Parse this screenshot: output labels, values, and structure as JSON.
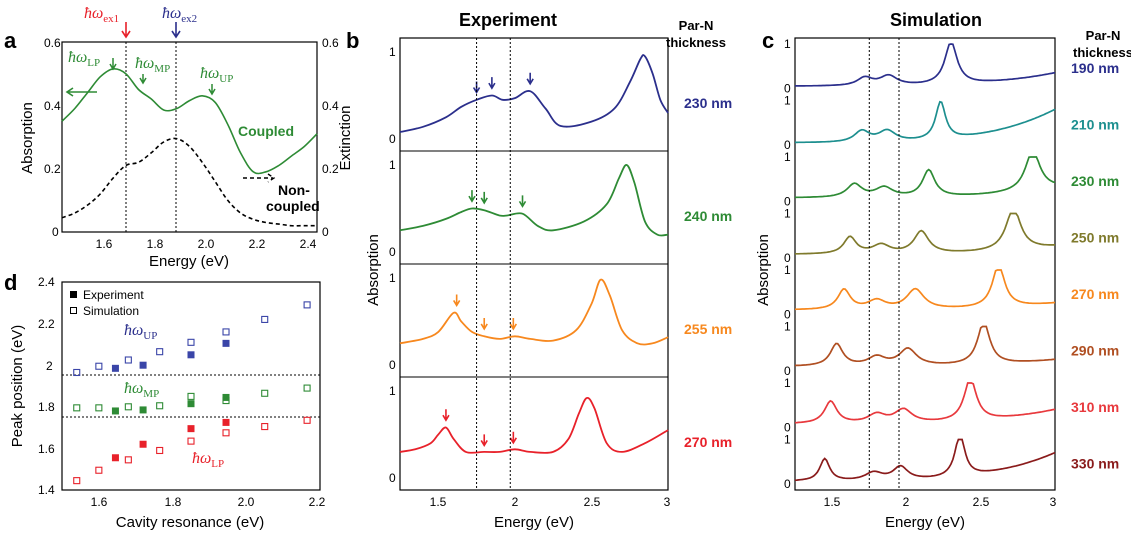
{
  "panel_labels": {
    "a": "a",
    "b": "b",
    "c": "c",
    "d": "d"
  },
  "titles": {
    "b": "Experiment",
    "c": "Simulation"
  },
  "header": {
    "line1": "Par-N",
    "line2": "thickness"
  },
  "panel_a": {
    "ylabel_left": "Absorption",
    "ylabel_right": "Extinction",
    "xlabel": "Energy (eV)",
    "xticks": [
      "1.6",
      "1.8",
      "2.0",
      "2.2",
      "2.4"
    ],
    "yticks": [
      "0",
      "0.2",
      "0.4",
      "0.6"
    ],
    "ex1": {
      "main": "ħω",
      "sub": "ex1"
    },
    "ex2": {
      "main": "ħω",
      "sub": "ex2"
    },
    "lp": {
      "main": "ħω",
      "sub": "LP"
    },
    "mp": {
      "main": "ħω",
      "sub": "MP"
    },
    "up": {
      "main": "ħω",
      "sub": "UP"
    },
    "coupled": "Coupled",
    "noncoupled_1": "Non-",
    "noncoupled_2": "coupled"
  },
  "panel_b": {
    "ylabel": "Absorption",
    "xlabel": "Energy (eV)",
    "xticks": [
      "1.5",
      "2",
      "2.5",
      "3"
    ]
  },
  "panel_c": {
    "ylabel": "Absorption",
    "xlabel": "Energy (eV)",
    "xticks": [
      "1.5",
      "2",
      "2.5",
      "3"
    ]
  },
  "panel_d": {
    "ylabel": "Peak position (eV)",
    "xlabel": "Cavity resonance (eV)",
    "xticks": [
      "1.6",
      "1.8",
      "2.0",
      "2.2"
    ],
    "yticks": [
      "1.4",
      "1.6",
      "1.8",
      "2",
      "2.2",
      "2.4"
    ],
    "legend": [
      "Experiment",
      "Simulation"
    ],
    "up": {
      "main": "ħω",
      "sub": "UP"
    },
    "mp": {
      "main": "ħω",
      "sub": "MP"
    },
    "lp": {
      "main": "ħω",
      "sub": "LP"
    }
  },
  "colors": {
    "green": "#2e8b35",
    "navy": "#2b2f8c",
    "red": "#e8212a",
    "orange": "#f7881e",
    "teal": "#1d8f8f",
    "olive": "#7f7a2c",
    "brown": "#b04f22",
    "crimson": "#e8393d",
    "maroon": "#8a1b1b",
    "blue_sq": "#3a45a8",
    "green_sq": "#2e8b35",
    "red_sq": "#e8212a"
  },
  "chart_data": [
    {
      "type": "line",
      "panel": "a",
      "xlabel": "Energy (eV)",
      "ylabel": "Absorption",
      "xlim": [
        1.5,
        2.5
      ],
      "ylim": [
        0,
        0.6
      ],
      "vlines": [
        1.75,
        1.95
      ],
      "series": [
        {
          "name": "Coupled",
          "style": "solid",
          "color": "#2e8b35",
          "x": [
            1.5,
            1.55,
            1.6,
            1.65,
            1.7,
            1.75,
            1.8,
            1.85,
            1.9,
            1.95,
            2.0,
            2.05,
            2.1,
            2.15,
            2.2,
            2.25,
            2.3,
            2.35,
            2.4,
            2.45,
            2.5
          ],
          "y": [
            0.35,
            0.39,
            0.44,
            0.49,
            0.515,
            0.5,
            0.45,
            0.42,
            0.385,
            0.39,
            0.415,
            0.43,
            0.41,
            0.34,
            0.25,
            0.19,
            0.19,
            0.21,
            0.24,
            0.27,
            0.31
          ]
        },
        {
          "name": "Non-coupled",
          "style": "dashed",
          "color": "#000000",
          "x": [
            1.5,
            1.55,
            1.6,
            1.65,
            1.7,
            1.75,
            1.8,
            1.85,
            1.9,
            1.95,
            2.0,
            2.05,
            2.1,
            2.15,
            2.2,
            2.25,
            2.3,
            2.35,
            2.4,
            2.45,
            2.5
          ],
          "y": [
            0.045,
            0.06,
            0.085,
            0.12,
            0.17,
            0.21,
            0.22,
            0.25,
            0.285,
            0.295,
            0.27,
            0.22,
            0.16,
            0.1,
            0.06,
            0.04,
            0.03,
            0.025,
            0.02,
            0.02,
            0.02
          ]
        }
      ]
    },
    {
      "type": "line",
      "panel": "b",
      "xlabel": "Energy (eV)",
      "ylabel": "Absorption",
      "xlim": [
        1.25,
        3
      ],
      "ylim": [
        0,
        1
      ],
      "vlines": [
        1.75,
        1.97
      ],
      "series": [
        {
          "name": "230 nm",
          "color": "#2b2f8c",
          "x": [
            1.25,
            1.4,
            1.55,
            1.65,
            1.75,
            1.85,
            1.92,
            2.0,
            2.1,
            2.2,
            2.3,
            2.5,
            2.65,
            2.75,
            2.82,
            2.85,
            2.9,
            2.95,
            3.0
          ],
          "y": [
            0.08,
            0.14,
            0.25,
            0.37,
            0.45,
            0.5,
            0.45,
            0.47,
            0.55,
            0.35,
            0.15,
            0.2,
            0.35,
            0.65,
            0.92,
            0.95,
            0.75,
            0.45,
            0.3
          ]
        },
        {
          "name": "240 nm",
          "color": "#2e8b35",
          "x": [
            1.25,
            1.4,
            1.55,
            1.65,
            1.72,
            1.8,
            1.9,
            1.95,
            2.05,
            2.15,
            2.25,
            2.45,
            2.6,
            2.68,
            2.73,
            2.78,
            2.85,
            2.93,
            3.0
          ],
          "y": [
            0.25,
            0.3,
            0.38,
            0.46,
            0.5,
            0.48,
            0.42,
            0.42,
            0.44,
            0.3,
            0.25,
            0.35,
            0.55,
            0.85,
            1.0,
            0.8,
            0.35,
            0.2,
            0.2
          ]
        },
        {
          "name": "255 nm",
          "color": "#f7881e",
          "x": [
            1.25,
            1.4,
            1.5,
            1.6,
            1.65,
            1.72,
            1.8,
            1.9,
            2.0,
            2.1,
            2.25,
            2.4,
            2.5,
            2.56,
            2.62,
            2.7,
            2.8,
            2.9,
            3.0
          ],
          "y": [
            0.25,
            0.3,
            0.38,
            0.6,
            0.5,
            0.38,
            0.33,
            0.3,
            0.33,
            0.3,
            0.28,
            0.4,
            0.7,
            0.98,
            0.8,
            0.4,
            0.25,
            0.25,
            0.32
          ]
        },
        {
          "name": "270 nm",
          "color": "#e8212a",
          "x": [
            1.25,
            1.35,
            1.45,
            1.5,
            1.55,
            1.6,
            1.68,
            1.8,
            1.9,
            2.0,
            2.1,
            2.25,
            2.35,
            2.42,
            2.47,
            2.52,
            2.6,
            2.7,
            2.85,
            3.0
          ],
          "y": [
            0.3,
            0.33,
            0.4,
            0.5,
            0.58,
            0.45,
            0.3,
            0.3,
            0.3,
            0.33,
            0.3,
            0.3,
            0.45,
            0.75,
            0.92,
            0.8,
            0.4,
            0.3,
            0.4,
            0.55
          ]
        }
      ]
    },
    {
      "type": "line",
      "panel": "c",
      "xlabel": "Energy (eV)",
      "ylabel": "Absorption",
      "xlim": [
        1.25,
        3
      ],
      "ylim": [
        0,
        1
      ],
      "vlines": [
        1.75,
        1.95
      ],
      "series": [
        {
          "name": "190 nm",
          "color": "#2b2f8c",
          "peaks": [
            [
              1.72,
              0.18,
              0.06
            ],
            [
              1.88,
              0.22,
              0.07
            ],
            [
              2.3,
              0.95,
              0.05
            ]
          ],
          "base": 0.05,
          "tail": 0.35
        },
        {
          "name": "210 nm",
          "color": "#1d8f8f",
          "peaks": [
            [
              1.7,
              0.25,
              0.06
            ],
            [
              1.87,
              0.25,
              0.07
            ],
            [
              2.23,
              0.85,
              0.04
            ]
          ],
          "base": 0.05,
          "tail": 0.8
        },
        {
          "name": "230 nm",
          "color": "#2e8b35",
          "peaks": [
            [
              1.65,
              0.3,
              0.06
            ],
            [
              1.85,
              0.22,
              0.07
            ],
            [
              2.15,
              0.6,
              0.05
            ],
            [
              2.85,
              0.9,
              0.06
            ]
          ],
          "base": 0.08,
          "tail": 0.3
        },
        {
          "name": "250 nm",
          "color": "#7f7a2c",
          "peaks": [
            [
              1.62,
              0.38,
              0.05
            ],
            [
              1.83,
              0.2,
              0.07
            ],
            [
              2.1,
              0.5,
              0.06
            ],
            [
              2.72,
              0.95,
              0.06
            ]
          ],
          "base": 0.08,
          "tail": 0.25
        },
        {
          "name": "270 nm",
          "color": "#f7881e",
          "peaks": [
            [
              1.58,
              0.45,
              0.05
            ],
            [
              1.8,
              0.2,
              0.07
            ],
            [
              2.06,
              0.45,
              0.07
            ],
            [
              2.62,
              0.95,
              0.05
            ]
          ],
          "base": 0.1,
          "tail": 0.25
        },
        {
          "name": "290 nm",
          "color": "#b04f22",
          "peaks": [
            [
              1.53,
              0.5,
              0.05
            ],
            [
              1.8,
              0.2,
              0.07
            ],
            [
              2.01,
              0.38,
              0.07
            ],
            [
              2.52,
              0.95,
              0.05
            ]
          ],
          "base": 0.1,
          "tail": 0.25
        },
        {
          "name": "310 nm",
          "color": "#e8393d",
          "peaks": [
            [
              1.49,
              0.5,
              0.05
            ],
            [
              1.8,
              0.2,
              0.07
            ],
            [
              1.98,
              0.3,
              0.07
            ],
            [
              2.43,
              0.95,
              0.05
            ]
          ],
          "base": 0.08,
          "tail": 0.4
        },
        {
          "name": "330 nm",
          "color": "#8a1b1b",
          "peaks": [
            [
              1.45,
              0.5,
              0.04
            ],
            [
              1.78,
              0.18,
              0.07
            ],
            [
              1.96,
              0.3,
              0.06
            ],
            [
              2.36,
              0.95,
              0.04
            ]
          ],
          "base": 0.06,
          "tail": 0.7
        }
      ]
    },
    {
      "type": "scatter",
      "panel": "d",
      "xlabel": "Cavity resonance (eV)",
      "ylabel": "Peak position (eV)",
      "xlim": [
        1.5,
        2.2
      ],
      "ylim": [
        1.4,
        2.4
      ],
      "hlines": [
        1.95,
        1.75
      ],
      "series": [
        {
          "name": "Experiment",
          "marker": "filled",
          "points": [
            {
              "x": 1.645,
              "y": 1.985,
              "c": "#3a45a8"
            },
            {
              "x": 1.72,
              "y": 2.0,
              "c": "#3a45a8"
            },
            {
              "x": 1.85,
              "y": 2.05,
              "c": "#3a45a8"
            },
            {
              "x": 1.945,
              "y": 2.105,
              "c": "#3a45a8"
            },
            {
              "x": 1.645,
              "y": 1.78,
              "c": "#2e8b35"
            },
            {
              "x": 1.72,
              "y": 1.785,
              "c": "#2e8b35"
            },
            {
              "x": 1.85,
              "y": 1.815,
              "c": "#2e8b35"
            },
            {
              "x": 1.945,
              "y": 1.845,
              "c": "#2e8b35"
            },
            {
              "x": 1.645,
              "y": 1.555,
              "c": "#e8212a"
            },
            {
              "x": 1.72,
              "y": 1.62,
              "c": "#e8212a"
            },
            {
              "x": 1.85,
              "y": 1.695,
              "c": "#e8212a"
            },
            {
              "x": 1.945,
              "y": 1.725,
              "c": "#e8212a"
            }
          ]
        },
        {
          "name": "Simulation",
          "marker": "open",
          "points": [
            {
              "x": 1.54,
              "y": 1.965,
              "c": "#3a45a8"
            },
            {
              "x": 1.6,
              "y": 1.995,
              "c": "#3a45a8"
            },
            {
              "x": 1.68,
              "y": 2.025,
              "c": "#3a45a8"
            },
            {
              "x": 1.765,
              "y": 2.065,
              "c": "#3a45a8"
            },
            {
              "x": 1.85,
              "y": 2.11,
              "c": "#3a45a8"
            },
            {
              "x": 1.945,
              "y": 2.16,
              "c": "#3a45a8"
            },
            {
              "x": 2.05,
              "y": 2.22,
              "c": "#3a45a8"
            },
            {
              "x": 2.165,
              "y": 2.29,
              "c": "#3a45a8"
            },
            {
              "x": 1.54,
              "y": 1.795,
              "c": "#2e8b35"
            },
            {
              "x": 1.6,
              "y": 1.795,
              "c": "#2e8b35"
            },
            {
              "x": 1.68,
              "y": 1.8,
              "c": "#2e8b35"
            },
            {
              "x": 1.765,
              "y": 1.805,
              "c": "#2e8b35"
            },
            {
              "x": 1.85,
              "y": 1.85,
              "c": "#2e8b35"
            },
            {
              "x": 1.945,
              "y": 1.83,
              "c": "#2e8b35"
            },
            {
              "x": 2.05,
              "y": 1.865,
              "c": "#2e8b35"
            },
            {
              "x": 2.165,
              "y": 1.89,
              "c": "#2e8b35"
            },
            {
              "x": 1.54,
              "y": 1.445,
              "c": "#e8212a"
            },
            {
              "x": 1.6,
              "y": 1.495,
              "c": "#e8212a"
            },
            {
              "x": 1.68,
              "y": 1.545,
              "c": "#e8212a"
            },
            {
              "x": 1.765,
              "y": 1.59,
              "c": "#e8212a"
            },
            {
              "x": 1.85,
              "y": 1.635,
              "c": "#e8212a"
            },
            {
              "x": 1.945,
              "y": 1.675,
              "c": "#e8212a"
            },
            {
              "x": 2.05,
              "y": 1.705,
              "c": "#e8212a"
            },
            {
              "x": 2.165,
              "y": 1.735,
              "c": "#e8212a"
            }
          ]
        }
      ]
    }
  ]
}
